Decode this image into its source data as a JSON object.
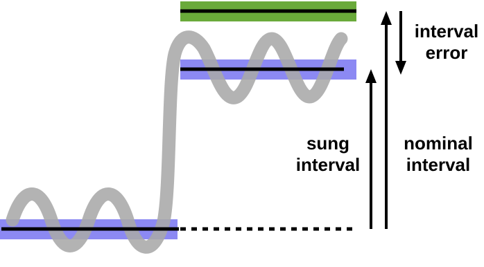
{
  "labels": {
    "sung_interval": [
      "sung",
      "interval"
    ],
    "nominal_interval": [
      "nominal",
      "interval"
    ],
    "interval_error": [
      "interval",
      "error"
    ]
  },
  "colors": {
    "background": "#ffffff",
    "pitch_curve": "#a9a9a9",
    "sung_pitch_band": "#7a78f0",
    "nominal_target_band": "#6aaa3a",
    "note_line": "#000000",
    "arrow": "#000000"
  }
}
